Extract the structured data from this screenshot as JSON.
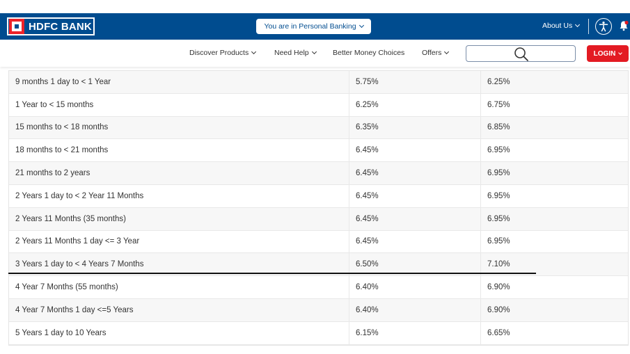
{
  "header": {
    "logo_text": "HDFC BANK",
    "personal_banking_label": "You are in Personal Banking",
    "about_label": "About Us",
    "colors": {
      "primary": "#004c8f",
      "accent": "#ed232a"
    }
  },
  "nav": {
    "items": [
      {
        "label": "Discover Products",
        "has_dropdown": true
      },
      {
        "label": "Need Help",
        "has_dropdown": true
      },
      {
        "label": "Better Money Choices",
        "has_dropdown": false
      },
      {
        "label": "Offers",
        "has_dropdown": true
      }
    ],
    "search_icon": "search-icon",
    "login_label": "LOGIN"
  },
  "table": {
    "rows": [
      {
        "tenure": "9 months 1 day to < 1 Year",
        "rate1": "5.75%",
        "rate2": "6.25%"
      },
      {
        "tenure": "1 Year to < 15 months",
        "rate1": "6.25%",
        "rate2": "6.75%"
      },
      {
        "tenure": "15 months to < 18 months",
        "rate1": "6.35%",
        "rate2": "6.85%"
      },
      {
        "tenure": "18 months to < 21 months",
        "rate1": "6.45%",
        "rate2": "6.95%"
      },
      {
        "tenure": "21 months to 2 years",
        "rate1": "6.45%",
        "rate2": "6.95%"
      },
      {
        "tenure": "2 Years 1 day to < 2 Year 11 Months",
        "rate1": "6.45%",
        "rate2": "6.95%"
      },
      {
        "tenure": "2 Years 11 Months (35 months)",
        "rate1": "6.45%",
        "rate2": "6.95%"
      },
      {
        "tenure": "2 Years 11 Months 1 day <= 3 Year",
        "rate1": "6.45%",
        "rate2": "6.95%"
      },
      {
        "tenure": "3 Years 1 day to < 4 Years 7 Months",
        "rate1": "6.50%",
        "rate2": "7.10%"
      },
      {
        "tenure": "4 Year 7 Months (55 months)",
        "rate1": "6.40%",
        "rate2": "6.90%"
      },
      {
        "tenure": "4 Year 7 Months 1 day <=5 Years",
        "rate1": "6.40%",
        "rate2": "6.90%"
      },
      {
        "tenure": "5 Years 1 day to 10 Years",
        "rate1": "6.15%",
        "rate2": "6.65%"
      }
    ]
  }
}
